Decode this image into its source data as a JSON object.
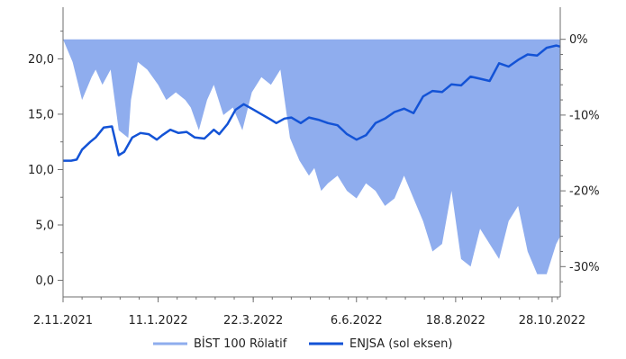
{
  "chart_data": {
    "type": "line+area",
    "title": "",
    "colors": {
      "area": "#8fadee",
      "line": "#1353d6",
      "axis": "#6e6e6e"
    },
    "x_ticks": [
      "2.11.2021",
      "11.1.2022",
      "22.3.2022",
      "6.6.2022",
      "18.8.2022",
      "28.10.2022"
    ],
    "x_range": [
      "2021-11-02",
      "2022-11-03"
    ],
    "left_axis": {
      "ticks": [
        "0,0",
        "5,0",
        "10,0",
        "15,0",
        "20,0"
      ],
      "tick_values": [
        0,
        5,
        10,
        15,
        20
      ],
      "range": [
        -1.5,
        24.5
      ]
    },
    "right_axis": {
      "ticks": [
        "0%",
        "-10%",
        "-20%",
        "-30%"
      ],
      "tick_values": [
        0,
        -10,
        -20,
        -30
      ],
      "range": [
        -34,
        4
      ]
    },
    "legend_position": "bottom",
    "series": [
      {
        "name": "BİST 100 Rölatif",
        "kind": "area",
        "axis": "right",
        "x": [
          "2021-11-02",
          "2021-11-09",
          "2021-11-16",
          "2021-11-23",
          "2021-11-26",
          "2021-12-01",
          "2021-12-07",
          "2021-12-13",
          "2021-12-20",
          "2021-12-22",
          "2021-12-27",
          "2022-01-03",
          "2022-01-11",
          "2022-01-17",
          "2022-01-24",
          "2022-01-31",
          "2022-02-04",
          "2022-02-10",
          "2022-02-16",
          "2022-02-21",
          "2022-02-28",
          "2022-03-07",
          "2022-03-14",
          "2022-03-21",
          "2022-03-28",
          "2022-04-04",
          "2022-04-11",
          "2022-04-18",
          "2022-04-25",
          "2022-05-02",
          "2022-05-06",
          "2022-05-11",
          "2022-05-16",
          "2022-05-23",
          "2022-05-30",
          "2022-06-06",
          "2022-06-13",
          "2022-06-20",
          "2022-06-27",
          "2022-07-04",
          "2022-07-11",
          "2022-07-18",
          "2022-07-25",
          "2022-08-01",
          "2022-08-08",
          "2022-08-15",
          "2022-08-22",
          "2022-08-29",
          "2022-09-05",
          "2022-09-12",
          "2022-09-19",
          "2022-09-26",
          "2022-10-03",
          "2022-10-10",
          "2022-10-17",
          "2022-10-24",
          "2022-10-31",
          "2022-11-03"
        ],
        "values": [
          0,
          -3,
          -8,
          -5,
          -4,
          -6,
          -4,
          -12,
          -13,
          -8,
          -3,
          -4,
          -6,
          -8,
          -7,
          -8,
          -9,
          -12,
          -8,
          -6,
          -10,
          -9,
          -12,
          -7,
          -5,
          -6,
          -4,
          -13,
          -16,
          -18,
          -17,
          -20,
          -19,
          -18,
          -20,
          -21,
          -19,
          -20,
          -22,
          -21,
          -18,
          -21,
          -24,
          -28,
          -27,
          -20,
          -29,
          -30,
          -25,
          -27,
          -29,
          -24,
          -22,
          -28,
          -31,
          -31,
          -27,
          -26
        ]
      },
      {
        "name": "ENJSA (sol eksen)",
        "kind": "line",
        "axis": "left",
        "x": [
          "2021-11-02",
          "2021-11-08",
          "2021-11-12",
          "2021-11-16",
          "2021-11-22",
          "2021-11-26",
          "2021-12-02",
          "2021-12-08",
          "2021-12-13",
          "2021-12-17",
          "2021-12-23",
          "2021-12-29",
          "2022-01-04",
          "2022-01-10",
          "2022-01-14",
          "2022-01-20",
          "2022-01-26",
          "2022-02-01",
          "2022-02-07",
          "2022-02-14",
          "2022-02-21",
          "2022-02-25",
          "2022-03-03",
          "2022-03-09",
          "2022-03-15",
          "2022-03-21",
          "2022-03-28",
          "2022-04-04",
          "2022-04-08",
          "2022-04-14",
          "2022-04-19",
          "2022-04-26",
          "2022-05-02",
          "2022-05-09",
          "2022-05-16",
          "2022-05-23",
          "2022-05-30",
          "2022-06-06",
          "2022-06-13",
          "2022-06-20",
          "2022-06-27",
          "2022-07-04",
          "2022-07-11",
          "2022-07-18",
          "2022-07-25",
          "2022-08-01",
          "2022-08-08",
          "2022-08-15",
          "2022-08-22",
          "2022-08-29",
          "2022-09-05",
          "2022-09-12",
          "2022-09-19",
          "2022-09-26",
          "2022-10-03",
          "2022-10-10",
          "2022-10-17",
          "2022-10-24",
          "2022-10-31",
          "2022-11-03"
        ],
        "values": [
          10.8,
          10.8,
          10.9,
          11.8,
          12.5,
          12.9,
          13.8,
          13.9,
          11.3,
          11.6,
          12.9,
          13.3,
          13.2,
          12.7,
          13.1,
          13.6,
          13.3,
          13.4,
          12.9,
          12.8,
          13.6,
          13.2,
          14.1,
          15.4,
          15.9,
          15.5,
          15.0,
          14.5,
          14.2,
          14.6,
          14.7,
          14.2,
          14.7,
          14.5,
          14.2,
          14.0,
          13.2,
          12.7,
          13.1,
          14.2,
          14.6,
          15.2,
          15.5,
          15.1,
          16.6,
          17.1,
          17.0,
          17.7,
          17.6,
          18.4,
          18.2,
          18.0,
          19.6,
          19.3,
          19.9,
          20.4,
          20.3,
          21.0,
          21.2,
          21.1
        ]
      }
    ]
  }
}
